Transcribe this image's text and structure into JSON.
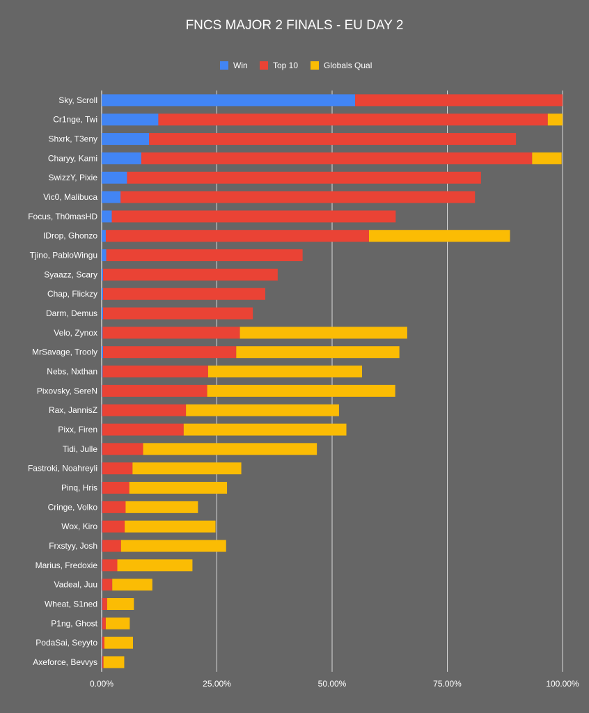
{
  "colors": {
    "background": "#666666",
    "win": "#4285f4",
    "top10": "#ea4335",
    "globals": "#fbbc04",
    "grid": "#d9d9d9",
    "text": "#ffffff"
  },
  "chart_data": {
    "type": "bar",
    "orientation": "horizontal",
    "stacked": true,
    "title": "FNCS MAJOR 2 FINALS - EU DAY 2",
    "xlabel": "",
    "ylabel": "",
    "xlim": [
      0,
      100
    ],
    "x_ticks": [
      "0.00%",
      "25.00%",
      "50.00%",
      "75.00%",
      "100.00%"
    ],
    "grid": true,
    "legend_position": "top",
    "categories": [
      "Sky, Scroll",
      "Cr1nge, Twi",
      "Shxrk, T3eny",
      "Charyy, Kami",
      "SwizzY, Pixie",
      "Vic0, Malibuca",
      "Focus, Th0masHD",
      "IDrop, Ghonzo",
      "Tjino, PabloWingu",
      "Syaazz, Scary",
      "Chap, Flickzy",
      "Darm, Demus",
      "Velo, Zynox",
      "MrSavage, Trooly",
      "Nebs, Nxthan",
      "Pixovsky, SereN",
      "Rax, JannisZ",
      "Pixx, Firen",
      "Tidi, Julle",
      "Fastroki, Noahreyli",
      "Pinq, Hris",
      "Cringe, Volko",
      "Wox, Kiro",
      "Frxstyy, Josh",
      "Marius, Fredoxie",
      "Vadeal, Juu",
      "Wheat, S1ned",
      "P1ng, Ghost",
      "PodaSai, Seyyto",
      "Axeforce, Bevvys"
    ],
    "series": [
      {
        "name": "Win",
        "values": [
          55.0,
          12.3,
          10.3,
          8.6,
          5.5,
          4.1,
          2.2,
          0.9,
          1.0,
          0.3,
          0.3,
          0.3,
          0.2,
          0.3,
          0.2,
          0.1,
          0.1,
          0.1,
          0.1,
          0.1,
          0.1,
          0.1,
          0.1,
          0.1,
          0.1,
          0.1,
          0.1,
          0.1,
          0.1,
          0.1
        ]
      },
      {
        "name": "Top 10",
        "values": [
          45.0,
          84.5,
          79.6,
          84.8,
          76.8,
          76.9,
          61.6,
          57.1,
          42.6,
          37.9,
          35.2,
          32.5,
          29.8,
          28.9,
          22.9,
          22.8,
          18.2,
          17.7,
          8.9,
          6.6,
          5.9,
          5.1,
          4.9,
          4.1,
          3.3,
          2.2,
          1.1,
          0.8,
          0.5,
          0.3
        ]
      },
      {
        "name": "Globals Qual",
        "values": [
          0,
          3.2,
          0,
          6.4,
          0,
          0,
          0,
          30.6,
          0,
          0,
          0,
          0,
          36.3,
          35.4,
          33.4,
          40.8,
          33.2,
          35.3,
          37.7,
          23.6,
          21.2,
          15.7,
          19.7,
          22.8,
          16.3,
          8.7,
          5.8,
          5.2,
          6.2,
          4.5
        ]
      }
    ]
  }
}
